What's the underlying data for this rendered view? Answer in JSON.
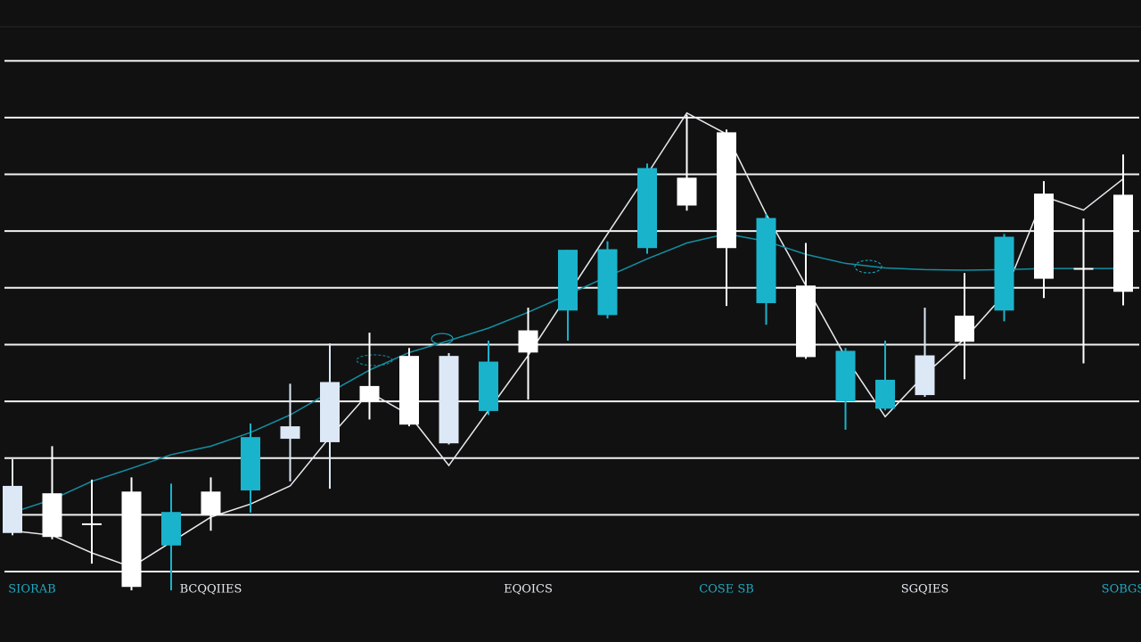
{
  "chart_data": {
    "type": "candlestick",
    "categories": [
      "SIORAB",
      null,
      null,
      null,
      null,
      "BCQQIIES",
      null,
      null,
      null,
      null,
      null,
      null,
      null,
      "EQOICS",
      null,
      null,
      null,
      null,
      "COSE SB",
      null,
      null,
      null,
      null,
      "SGQIES",
      null,
      null,
      null,
      null,
      "SOBGS"
    ],
    "category_colors": [
      "#1fa7c0",
      null,
      null,
      null,
      null,
      "#e4e8ee",
      null,
      null,
      null,
      null,
      null,
      null,
      null,
      "#e4e8ee",
      null,
      null,
      null,
      null,
      "#1fa7c0",
      null,
      null,
      null,
      null,
      "#e4e8ee",
      null,
      null,
      null,
      null,
      "#1fa7c0"
    ],
    "open": [
      0.68,
      1.38,
      0.85,
      1.41,
      0.46,
      1.41,
      1.43,
      2.34,
      2.28,
      3.27,
      3.8,
      2.26,
      2.83,
      4.25,
      4.6,
      4.52,
      5.7,
      6.94,
      7.74,
      4.73,
      5.04,
      3.0,
      2.87,
      3.11,
      4.51,
      4.6,
      6.66,
      5.35,
      6.64
    ],
    "high": [
      1.98,
      2.21,
      1.62,
      1.66,
      1.55,
      1.66,
      2.61,
      3.31,
      4.02,
      4.21,
      3.94,
      3.85,
      4.07,
      4.65,
      5.67,
      5.82,
      7.19,
      8.05,
      7.79,
      6.3,
      5.79,
      3.94,
      4.07,
      4.65,
      5.26,
      5.95,
      6.88,
      6.22,
      7.35
    ],
    "low": [
      0.64,
      0.57,
      0.14,
      -0.33,
      -0.33,
      0.72,
      1.04,
      1.59,
      1.46,
      2.68,
      2.56,
      2.24,
      2.76,
      3.03,
      4.07,
      4.46,
      5.6,
      6.36,
      4.68,
      4.35,
      3.75,
      2.5,
      2.84,
      3.08,
      3.39,
      4.41,
      4.82,
      3.67,
      4.69
    ],
    "close": [
      1.51,
      0.61,
      0.85,
      -0.27,
      1.05,
      0.99,
      2.37,
      2.56,
      3.34,
      3.0,
      2.59,
      3.8,
      3.7,
      3.86,
      5.67,
      5.68,
      7.11,
      6.45,
      5.7,
      6.23,
      3.78,
      3.89,
      3.38,
      3.81,
      4.05,
      5.9,
      5.16,
      5.35,
      4.93
    ],
    "candle_colors": [
      "#dde8f6",
      "#ffffff",
      "#ffffff",
      "#ffffff",
      "#1ab3cc",
      "#ffffff",
      "#1ab3cc",
      "#dde8f6",
      "#dde8f6",
      "#ffffff",
      "#ffffff",
      "#dde8f6",
      "#1ab3cc",
      "#ffffff",
      "#1ab3cc",
      "#1ab3cc",
      "#1ab3cc",
      "#ffffff",
      "#ffffff",
      "#1ab3cc",
      "#ffffff",
      "#1ab3cc",
      "#1ab3cc",
      "#dde8f6",
      "#ffffff",
      "#1ab3cc",
      "#ffffff",
      "#ffffff",
      "#ffffff"
    ],
    "series": [
      {
        "color": "#e8ecf0",
        "values": [
          0.72,
          0.64,
          0.33,
          0.08,
          0.52,
          0.96,
          1.19,
          1.51,
          2.37,
          3.16,
          2.76,
          1.87,
          2.84,
          3.81,
          4.88,
          5.95,
          7.0,
          8.08,
          7.71,
          6.3,
          5.04,
          3.78,
          2.73,
          3.47,
          4.1,
          4.88,
          6.61,
          6.37,
          6.92
        ]
      },
      {
        "color": "#138fa3",
        "values": [
          1.04,
          1.27,
          1.59,
          1.82,
          2.06,
          2.21,
          2.45,
          2.76,
          3.16,
          3.55,
          3.86,
          4.07,
          4.29,
          4.57,
          4.88,
          5.2,
          5.51,
          5.79,
          5.95,
          5.82,
          5.59,
          5.43,
          5.35,
          5.32,
          5.31,
          5.32,
          5.34,
          5.34,
          5.34
        ]
      }
    ],
    "ylim": [
      -0.4,
      9.6
    ],
    "yticks": [
      0,
      1,
      2,
      3,
      4,
      5,
      6,
      7,
      8,
      9
    ],
    "grid": true,
    "grid_color": "#f2f2f2"
  }
}
